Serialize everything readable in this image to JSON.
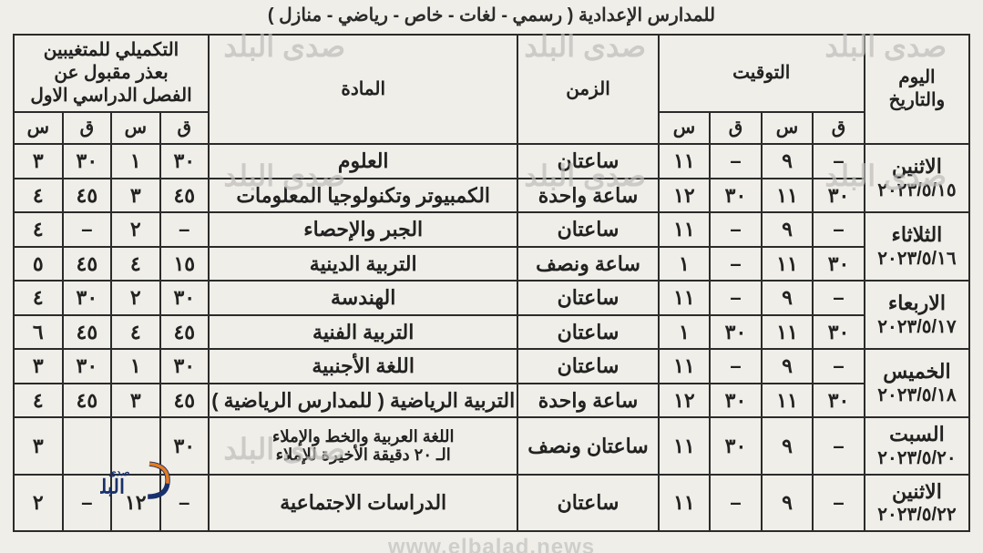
{
  "title_line": "للمدارس الإعدادية ( رسمي - لغات - خاص - رياضي - منازل )",
  "watermark": "صدى البلد",
  "watermark_url": "www.elbalad.news",
  "headers": {
    "day_date": "اليوم\nوالتاريخ",
    "time": "التوقيت",
    "duration": "الزمن",
    "subject": "المادة",
    "makeup": "التكميلي للمتغيبين\nبعذر مقبول عن\nالفصل الدراسي الاول",
    "q": "ق",
    "s": "س"
  },
  "colors": {
    "background": "#f0eee8",
    "border": "#2b2b2b",
    "text": "#222222",
    "watermark": "#bdbdbb"
  },
  "cell_font_size_pt": 16,
  "days": [
    {
      "day": "الاثنين",
      "date": "٢٠٢٣/٥/١٥",
      "rows": [
        {
          "time": {
            "q1": "–",
            "s1": "٩",
            "q2": "–",
            "s2": "١١"
          },
          "duration": "ساعتان",
          "subject": "العلوم",
          "makeup": {
            "q1": "٣٠",
            "s1": "١",
            "q2": "٣٠",
            "s2": "٣"
          }
        },
        {
          "time": {
            "q1": "٣٠",
            "s1": "١١",
            "q2": "٣٠",
            "s2": "١٢"
          },
          "duration": "ساعة واحدة",
          "subject": "الكمبيوتر وتكنولوجيا المعلومات",
          "makeup": {
            "q1": "٤٥",
            "s1": "٣",
            "q2": "٤٥",
            "s2": "٤"
          }
        }
      ]
    },
    {
      "day": "الثلاثاء",
      "date": "٢٠٢٣/٥/١٦",
      "rows": [
        {
          "time": {
            "q1": "–",
            "s1": "٩",
            "q2": "–",
            "s2": "١١"
          },
          "duration": "ساعتان",
          "subject": "الجبر والإحصاء",
          "makeup": {
            "q1": "–",
            "s1": "٢",
            "q2": "–",
            "s2": "٤"
          }
        },
        {
          "time": {
            "q1": "٣٠",
            "s1": "١١",
            "q2": "–",
            "s2": "١"
          },
          "duration": "ساعة ونصف",
          "subject": "التربية الدينية",
          "makeup": {
            "q1": "١٥",
            "s1": "٤",
            "q2": "٤٥",
            "s2": "٥"
          }
        }
      ]
    },
    {
      "day": "الاربعاء",
      "date": "٢٠٢٣/٥/١٧",
      "rows": [
        {
          "time": {
            "q1": "–",
            "s1": "٩",
            "q2": "–",
            "s2": "١١"
          },
          "duration": "ساعتان",
          "subject": "الهندسة",
          "makeup": {
            "q1": "٣٠",
            "s1": "٢",
            "q2": "٣٠",
            "s2": "٤"
          }
        },
        {
          "time": {
            "q1": "٣٠",
            "s1": "١١",
            "q2": "٣٠",
            "s2": "١"
          },
          "duration": "ساعتان",
          "subject": "التربية الفنية",
          "makeup": {
            "q1": "٤٥",
            "s1": "٤",
            "q2": "٤٥",
            "s2": "٦"
          }
        }
      ]
    },
    {
      "day": "الخميس",
      "date": "٢٠٢٣/٥/١٨",
      "rows": [
        {
          "time": {
            "q1": "–",
            "s1": "٩",
            "q2": "–",
            "s2": "١١"
          },
          "duration": "ساعتان",
          "subject": "اللغة الأجنبية",
          "makeup": {
            "q1": "٣٠",
            "s1": "١",
            "q2": "٣٠",
            "s2": "٣"
          }
        },
        {
          "time": {
            "q1": "٣٠",
            "s1": "١١",
            "q2": "٣٠",
            "s2": "١٢"
          },
          "duration": "ساعة واحدة",
          "subject": "التربية الرياضية ( للمدارس الرياضية )",
          "makeup": {
            "q1": "٤٥",
            "s1": "٣",
            "q2": "٤٥",
            "s2": "٤"
          }
        }
      ]
    },
    {
      "day": "السبت",
      "date": "٢٠٢٣/٥/٢٠",
      "rows": [
        {
          "time": {
            "q1": "–",
            "s1": "٩",
            "q2": "٣٠",
            "s2": "١١"
          },
          "duration": "ساعتان ونصف",
          "subject": "اللغة العربية والخط والإملاء\nالـ ٢٠ دقيقة الأخيرة للإملاء",
          "makeup": {
            "q1": "٣٠",
            "s1": "",
            "q2": "",
            "s2": "٣"
          },
          "subject_small": true
        }
      ]
    },
    {
      "day": "الاثنين",
      "date": "٢٠٢٣/٥/٢٢",
      "rows": [
        {
          "time": {
            "q1": "–",
            "s1": "٩",
            "q2": "–",
            "s2": "١١"
          },
          "duration": "ساعتان",
          "subject": "الدراسات الاجتماعية",
          "makeup": {
            "q1": "–",
            "s1": "١٢",
            "q2": "–",
            "s2": "٢"
          }
        }
      ]
    }
  ]
}
